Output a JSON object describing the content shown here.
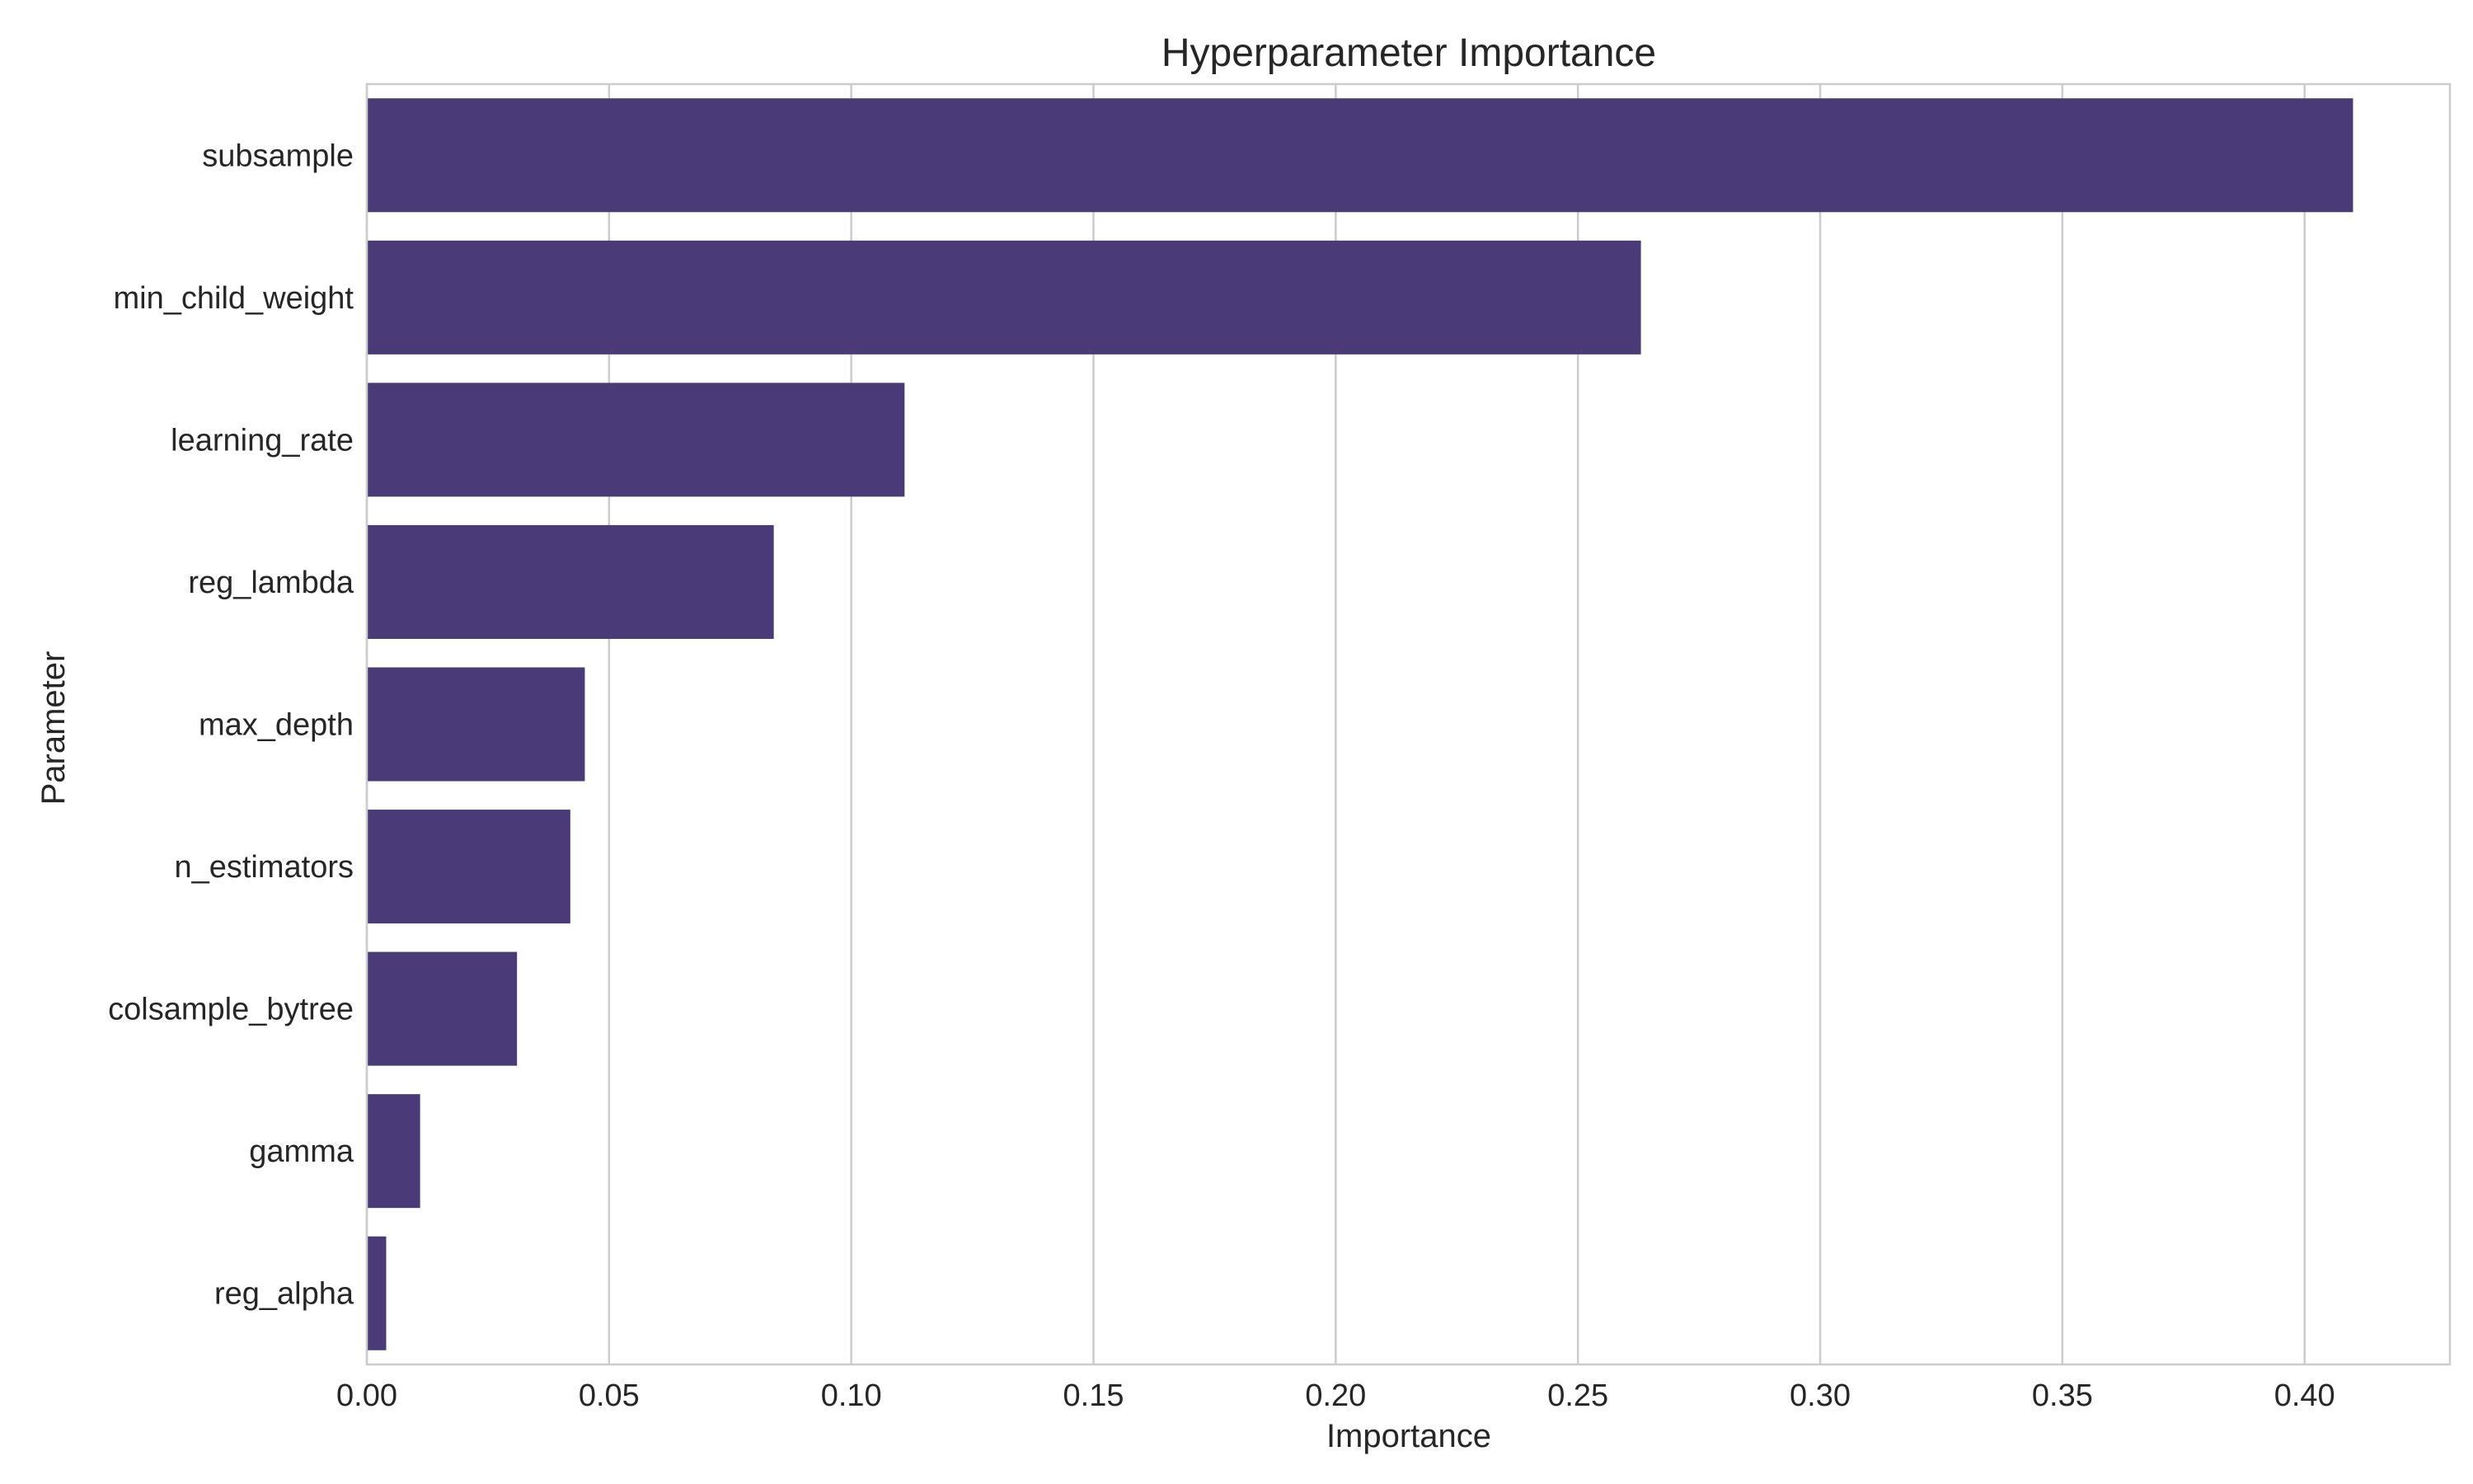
{
  "chart_data": {
    "type": "bar",
    "orientation": "horizontal",
    "title": "Hyperparameter Importance",
    "xlabel": "Importance",
    "ylabel": "Parameter",
    "categories": [
      "subsample",
      "min_child_weight",
      "learning_rate",
      "reg_lambda",
      "max_depth",
      "n_estimators",
      "colsample_bytree",
      "gamma",
      "reg_alpha"
    ],
    "values": [
      0.41,
      0.263,
      0.111,
      0.084,
      0.045,
      0.042,
      0.031,
      0.011,
      0.004
    ],
    "xlim": [
      0,
      0.43
    ],
    "xticks": [
      0.0,
      0.05,
      0.1,
      0.15,
      0.2,
      0.25,
      0.3,
      0.35,
      0.4
    ],
    "xtick_labels": [
      "0.00",
      "0.05",
      "0.10",
      "0.15",
      "0.20",
      "0.25",
      "0.30",
      "0.35",
      "0.40"
    ],
    "grid": true,
    "bar_color": "#4a3b78",
    "grid_color": "#cccccc",
    "spine_color": "#cccccc"
  }
}
